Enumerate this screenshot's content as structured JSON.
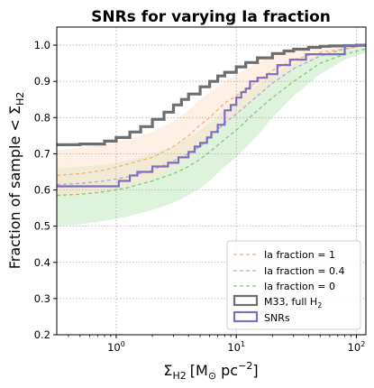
{
  "chart_data": {
    "type": "line",
    "title": "SNRs for varying Ia fraction",
    "ylabel_parts": {
      "main": "Fraction of sample < Σ",
      "sub": "H2"
    },
    "xlabel_parts": {
      "sigma": "Σ",
      "sub": "H2",
      "units": "[M",
      "sun": "⊙",
      "units2": " pc",
      "exp": "−2",
      "close": "]"
    },
    "x_scale": "log",
    "xlim": [
      0.32,
      120
    ],
    "ylim": [
      0.2,
      1.05
    ],
    "x_ticks": [
      {
        "v": 1,
        "label": "10",
        "exp": "0"
      },
      {
        "v": 10,
        "label": "10",
        "exp": "1"
      },
      {
        "v": 100,
        "label": "10",
        "exp": "2"
      }
    ],
    "y_ticks": [
      0.2,
      0.3,
      0.4,
      0.5,
      0.6,
      0.7,
      0.8,
      0.9,
      1.0
    ],
    "grid": true,
    "legend_position": "lower right",
    "colors": {
      "ia1": "#f4b27a",
      "ia04": "#b8a3cf",
      "ia0": "#8cc47a",
      "m33": "#6e6e6e",
      "snrs": "#7b6fc0",
      "band_ia1": "#fde6d2",
      "band_ia0": "#d3efd0"
    },
    "series": [
      {
        "name": "Ia fraction = 1",
        "style": "dashed",
        "x": [
          0.32,
          0.5,
          0.8,
          1.2,
          2,
          3,
          4,
          5,
          6,
          8,
          10,
          15,
          20,
          30,
          50,
          80,
          120
        ],
        "y": [
          0.64,
          0.645,
          0.655,
          0.67,
          0.69,
          0.72,
          0.75,
          0.78,
          0.8,
          0.84,
          0.86,
          0.9,
          0.93,
          0.96,
          0.98,
          0.99,
          1.0
        ],
        "band_lo": [
          0.58,
          0.585,
          0.595,
          0.61,
          0.63,
          0.66,
          0.69,
          0.72,
          0.74,
          0.78,
          0.81,
          0.86,
          0.9,
          0.94,
          0.97,
          0.985,
          0.995
        ],
        "band_hi": [
          0.71,
          0.715,
          0.725,
          0.74,
          0.76,
          0.79,
          0.82,
          0.85,
          0.87,
          0.9,
          0.92,
          0.95,
          0.97,
          0.985,
          0.995,
          1.0,
          1.0
        ]
      },
      {
        "name": "Ia fraction = 0.4",
        "style": "dashed",
        "x": [
          0.32,
          0.5,
          0.8,
          1.2,
          2,
          3,
          4,
          5,
          6,
          8,
          10,
          15,
          20,
          30,
          50,
          80,
          120
        ],
        "y": [
          0.615,
          0.618,
          0.625,
          0.635,
          0.655,
          0.68,
          0.7,
          0.72,
          0.745,
          0.785,
          0.81,
          0.86,
          0.895,
          0.935,
          0.97,
          0.99,
          1.0
        ]
      },
      {
        "name": "Ia fraction = 0",
        "style": "dashed",
        "x": [
          0.32,
          0.5,
          0.8,
          1.2,
          2,
          3,
          4,
          5,
          6,
          8,
          10,
          15,
          20,
          30,
          50,
          80,
          120
        ],
        "y": [
          0.585,
          0.588,
          0.595,
          0.605,
          0.625,
          0.645,
          0.665,
          0.685,
          0.705,
          0.74,
          0.765,
          0.82,
          0.855,
          0.9,
          0.95,
          0.975,
          0.99
        ],
        "band_lo": [
          0.5,
          0.505,
          0.515,
          0.525,
          0.545,
          0.565,
          0.585,
          0.605,
          0.625,
          0.665,
          0.69,
          0.75,
          0.8,
          0.86,
          0.92,
          0.96,
          0.98
        ],
        "band_hi": [
          0.66,
          0.665,
          0.67,
          0.68,
          0.7,
          0.72,
          0.745,
          0.765,
          0.785,
          0.82,
          0.845,
          0.89,
          0.92,
          0.95,
          0.975,
          0.99,
          1.0
        ]
      },
      {
        "name": "M33, full H",
        "name_sub": "2",
        "style": "step",
        "x": [
          0.32,
          0.5,
          0.8,
          1.0,
          1.3,
          1.6,
          2.0,
          2.5,
          3.0,
          3.5,
          4.0,
          5.0,
          6.0,
          7.0,
          8.0,
          10,
          12,
          15,
          20,
          25,
          30,
          40,
          50,
          60,
          80,
          100,
          120
        ],
        "y": [
          0.725,
          0.727,
          0.735,
          0.745,
          0.76,
          0.775,
          0.795,
          0.815,
          0.835,
          0.85,
          0.865,
          0.885,
          0.9,
          0.915,
          0.925,
          0.94,
          0.952,
          0.965,
          0.977,
          0.984,
          0.989,
          0.994,
          0.997,
          0.998,
          0.999,
          1.0,
          1.0
        ]
      },
      {
        "name": "SNRs",
        "style": "step",
        "x": [
          0.32,
          0.7,
          1.05,
          1.3,
          1.5,
          2.0,
          2.7,
          3.3,
          4.0,
          4.5,
          5.0,
          5.7,
          6.2,
          7.0,
          8.0,
          9.0,
          10.0,
          11.0,
          12.0,
          13.0,
          15.0,
          18.0,
          22.0,
          28.0,
          38.0,
          80.0,
          120.0
        ],
        "y": [
          0.61,
          0.61,
          0.625,
          0.64,
          0.65,
          0.665,
          0.675,
          0.69,
          0.705,
          0.72,
          0.73,
          0.745,
          0.76,
          0.78,
          0.82,
          0.835,
          0.855,
          0.87,
          0.88,
          0.9,
          0.91,
          0.92,
          0.945,
          0.96,
          0.975,
          1.0,
          1.0
        ]
      }
    ]
  }
}
